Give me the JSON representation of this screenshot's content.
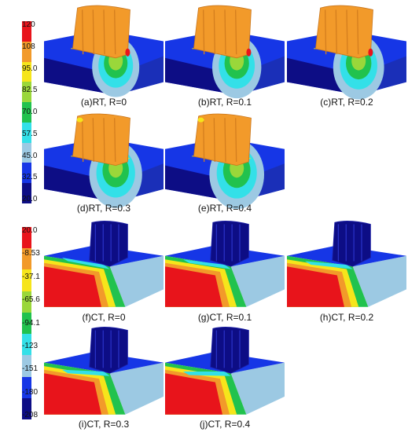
{
  "rt_scale": {
    "labels": [
      "120",
      "108",
      "95.0",
      "82.5",
      "70.0",
      "57.5",
      "45.0",
      "32.5",
      "20.0"
    ],
    "colors": [
      "#e8141b",
      "#f29a2a",
      "#f6e51b",
      "#9ad73a",
      "#21c24e",
      "#33e0e8",
      "#9cc9e3",
      "#1636e6",
      "#0d0d85"
    ]
  },
  "ct_scale": {
    "labels": [
      "20.0",
      "-8.53",
      "-37.1",
      "-65.6",
      "-94.1",
      "-123",
      "-151",
      "-180",
      "-208"
    ],
    "colors": [
      "#e8141b",
      "#f29a2a",
      "#f6e51b",
      "#9ad73a",
      "#21c24e",
      "#33e0e8",
      "#9cc9e3",
      "#1636e6",
      "#0d0d85"
    ]
  },
  "rt_panels": [
    {
      "caption": "(a)RT, R=0",
      "variant": 0
    },
    {
      "caption": "(b)RT, R=0.1",
      "variant": 1
    },
    {
      "caption": "(c)RT, R=0.2",
      "variant": 2
    },
    {
      "caption": "(d)RT, R=0.3",
      "variant": 3
    },
    {
      "caption": "(e)RT, R=0.4",
      "variant": 4
    }
  ],
  "ct_panels": [
    {
      "caption": "(f)CT, R=0",
      "variant": 0
    },
    {
      "caption": "(g)CT, R=0.1",
      "variant": 1
    },
    {
      "caption": "(h)CT, R=0.2",
      "variant": 2
    },
    {
      "caption": "(i)CT, R=0.3",
      "variant": 3
    },
    {
      "caption": "(j)CT, R=0.4",
      "variant": 4
    }
  ]
}
